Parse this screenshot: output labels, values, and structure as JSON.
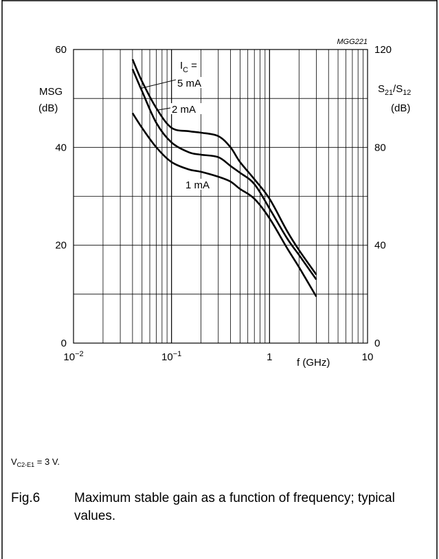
{
  "chart_data": {
    "type": "line",
    "figure_code": "MGG221",
    "x_scale": "log",
    "xlim": [
      0.01,
      10
    ],
    "xlabel": "f (GHz)",
    "x_ticks": [
      {
        "value": 0.01,
        "base": "10",
        "exp": "−2"
      },
      {
        "value": 0.1,
        "base": "10",
        "exp": "−1"
      },
      {
        "value": 1,
        "base": "1",
        "exp": ""
      },
      {
        "value": 10,
        "base": "10",
        "exp": ""
      }
    ],
    "left_axis": {
      "label_line1": "MSG",
      "label_line2": "(dB)",
      "ylim": [
        0,
        60
      ],
      "ticks": [
        "0",
        "20",
        "40",
        "60"
      ]
    },
    "right_axis": {
      "label_main": "S",
      "sub1": "21",
      "slash": "/S",
      "sub2": "12",
      "label_line2": "(dB)",
      "ylim": [
        0,
        120
      ],
      "ticks": [
        "0",
        "40",
        "80",
        "120"
      ]
    },
    "grid": true,
    "legend_header": {
      "main": "I",
      "sub": "C",
      "suffix": " ="
    },
    "series": [
      {
        "name": "5 mA",
        "x": [
          0.04,
          0.05,
          0.07,
          0.1,
          0.15,
          0.2,
          0.3,
          0.4,
          0.5,
          0.7,
          1.0,
          1.5,
          2.0,
          3.0
        ],
        "y": [
          58,
          53.5,
          48,
          44,
          43.3,
          43,
          42.3,
          40,
          37,
          33.5,
          29.5,
          23,
          19,
          14
        ]
      },
      {
        "name": "2 mA",
        "x": [
          0.04,
          0.05,
          0.07,
          0.1,
          0.15,
          0.2,
          0.3,
          0.4,
          0.5,
          0.7,
          1.0,
          1.5,
          2.0,
          3.0
        ],
        "y": [
          56,
          51.5,
          45,
          41,
          39,
          38.5,
          38,
          36.2,
          34.8,
          32.5,
          27.5,
          21.5,
          18,
          13
        ]
      },
      {
        "name": "1 mA",
        "x": [
          0.04,
          0.05,
          0.07,
          0.1,
          0.15,
          0.2,
          0.3,
          0.4,
          0.5,
          0.7,
          1.0,
          1.5,
          2.0,
          3.0
        ],
        "y": [
          47,
          44,
          40,
          37,
          35.5,
          35,
          34,
          33,
          31.5,
          29.5,
          25.5,
          19.5,
          15.5,
          9.5
        ]
      }
    ]
  },
  "condition": {
    "main": "V",
    "sub": "C2-E1",
    "rest": " = 3 V."
  },
  "caption": {
    "fig": "Fig.6",
    "text": "Maximum stable gain as a function of frequency; typical values."
  }
}
